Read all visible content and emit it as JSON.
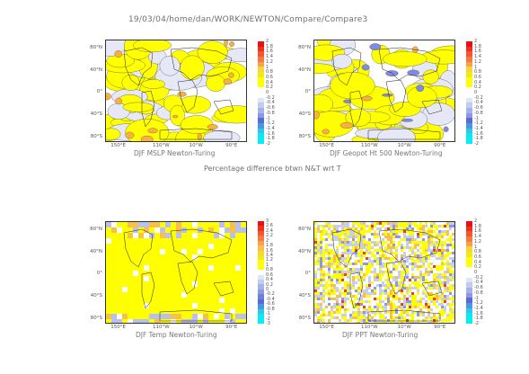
{
  "header": {
    "path": "19/03/04/home/dan/WORK/NEWTON/Compare/Compare3",
    "caption": "Percentage difference btwn N&T wrt T"
  },
  "axes": {
    "lat_labels": [
      "80°N",
      "40°N",
      "0°",
      "40°S",
      "80°S"
    ],
    "lon_labels": [
      "150°E",
      "110°W",
      "10°W",
      "90°E"
    ]
  },
  "panels": [
    {
      "title": "DJF MSLP Newton-Turing",
      "colorbar": [
        "2",
        "1.8",
        "1.6",
        "1.4",
        "1.2",
        "1",
        "0.8",
        "0.6",
        "0.4",
        "0.2",
        "0",
        "-0.2",
        "-0.4",
        "-0.6",
        "-0.8",
        "-1",
        "-1.2",
        "-1.4",
        "-1.6",
        "-1.8",
        "-2"
      ]
    },
    {
      "title": "DJF Geopot Ht 500 Newton-Turing",
      "colorbar": [
        "2",
        "1.8",
        "1.6",
        "1.4",
        "1.2",
        "1",
        "0.8",
        "0.6",
        "0.4",
        "0.2",
        "0",
        "-0.2",
        "-0.4",
        "-0.6",
        "-0.8",
        "-1",
        "-1.2",
        "-1.4",
        "-1.6",
        "-1.8",
        "-2"
      ]
    },
    {
      "title": "DJF Temp Newton-Turing",
      "colorbar": [
        "3",
        "2.6",
        "2.4",
        "2.2",
        "2",
        "1.8",
        "1.6",
        "1.4",
        "1.2",
        "1",
        "0.8",
        "0.6",
        "0.4",
        "0.2",
        "0",
        "-0.2",
        "-0.4",
        "-0.6",
        "-0.8",
        "-1",
        "-2",
        "-3"
      ]
    },
    {
      "title": "DJF PPT Newton-Turing",
      "colorbar": [
        "2",
        "1.8",
        "1.6",
        "1.4",
        "1.2",
        "1",
        "0.8",
        "0.6",
        "0.4",
        "0.2",
        "0",
        "-0.2",
        "-0.4",
        "-0.6",
        "-0.8",
        "-1",
        "-1.2",
        "-1.4",
        "-1.6",
        "-1.8",
        "-2"
      ]
    }
  ],
  "colors": {
    "ramp": [
      "#e81010",
      "#f03018",
      "#f55530",
      "#f87840",
      "#f8a050",
      "#f8c048",
      "#f8d830",
      "#f0e818",
      "#ffff00",
      "#ffff00",
      "#ffffff",
      "#ffffff",
      "#dfe4f6",
      "#c4cbf0",
      "#a8b2ea",
      "#8c98e4",
      "#6f7ede",
      "#5a68d8",
      "#4898e0",
      "#30c8e8",
      "#10e8f0",
      "#00f0f8"
    ],
    "fill_pos": "#ffff00",
    "fill_neg": "#e6e8f7"
  }
}
